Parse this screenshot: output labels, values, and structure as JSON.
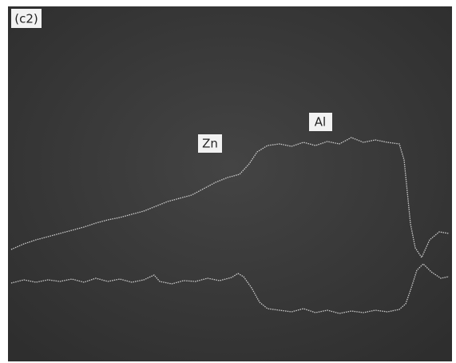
{
  "panel_label": "(c2)",
  "labels": {
    "zn": "Zn",
    "al": "Al"
  }
}
